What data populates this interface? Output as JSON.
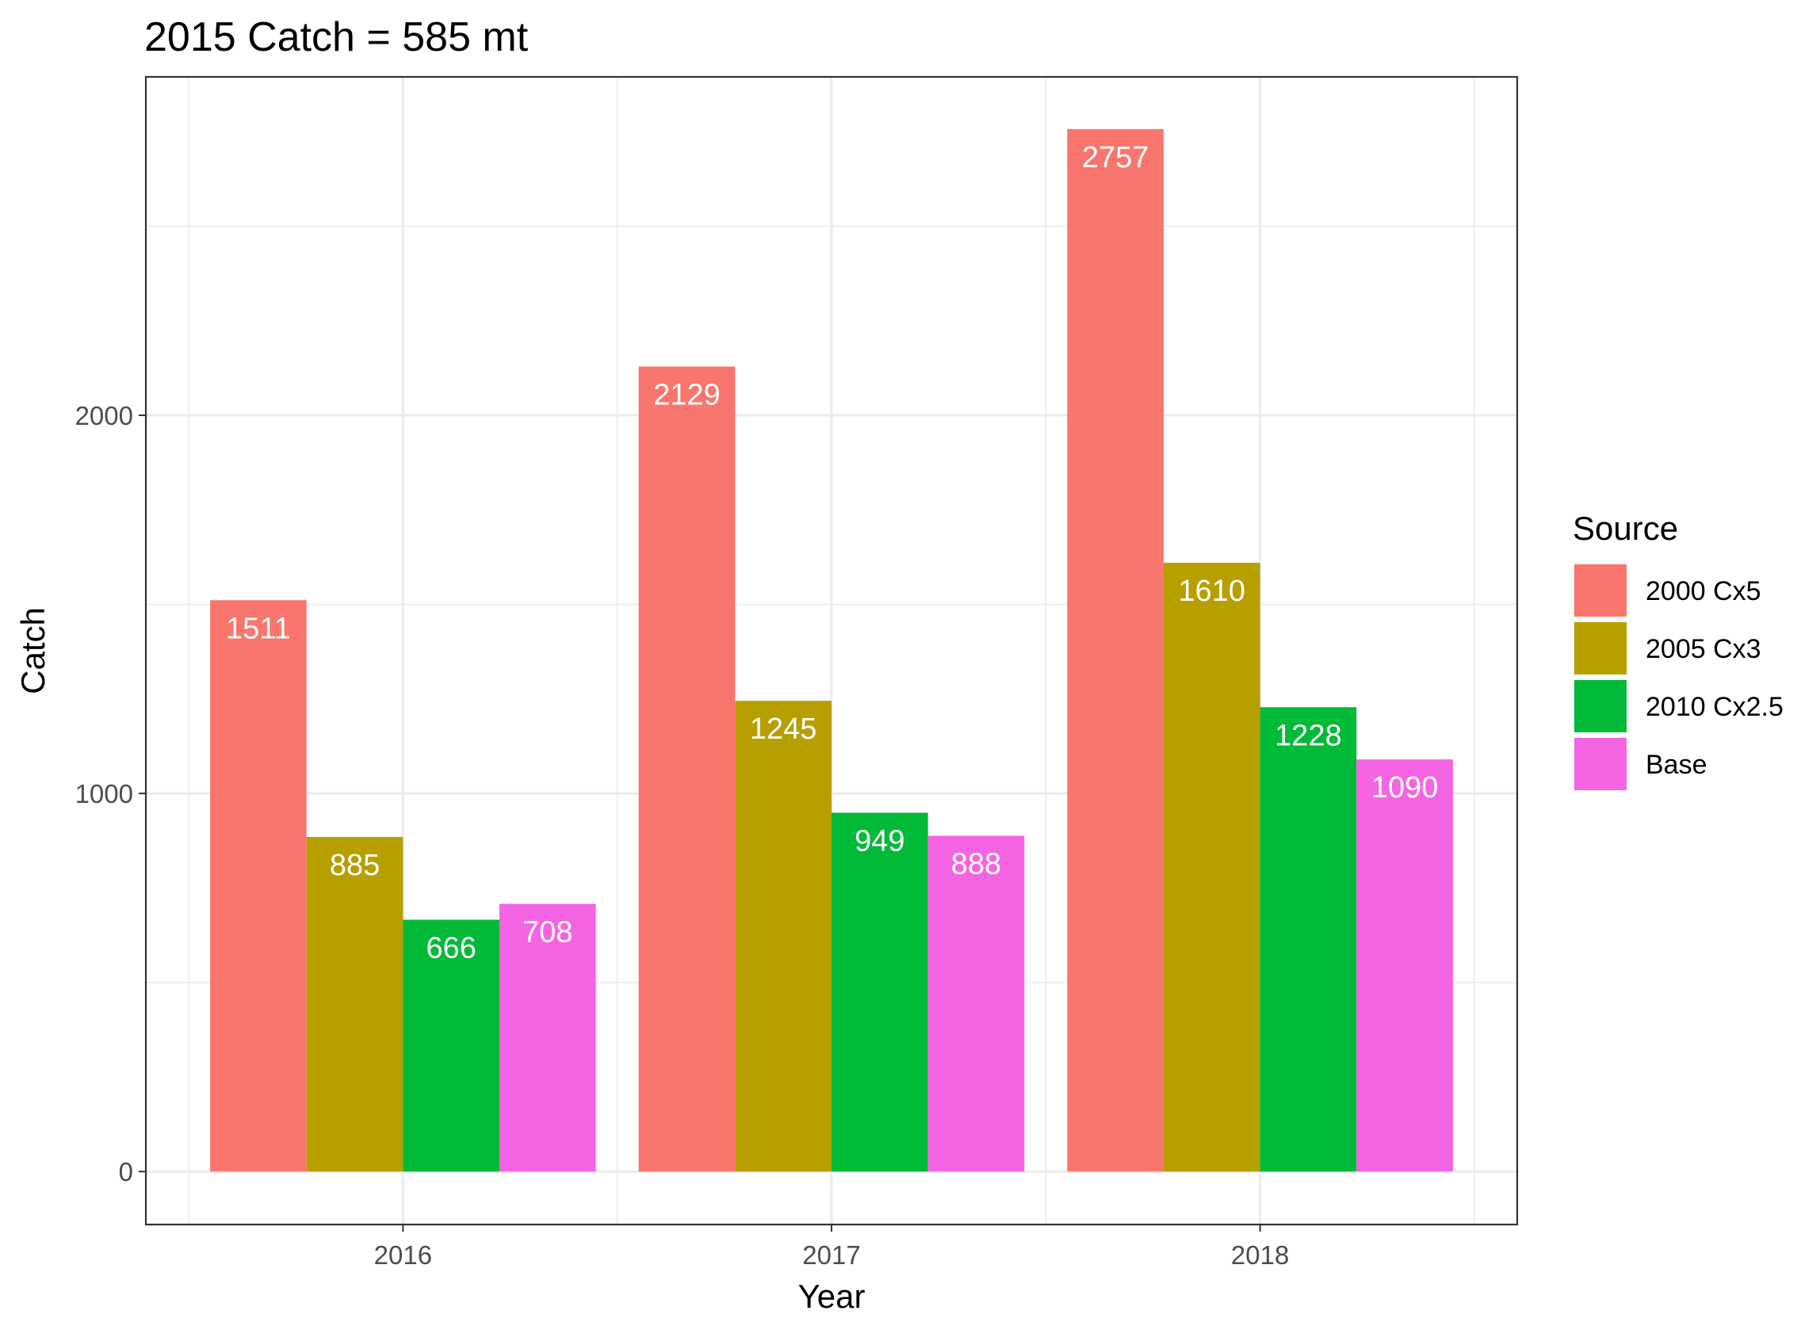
{
  "chart_data": {
    "type": "bar",
    "title": "2015  Catch =  585  mt",
    "xlabel": "Year",
    "ylabel": "Catch",
    "categories": [
      "2016",
      "2017",
      "2018"
    ],
    "y_ticks": [
      0,
      1000,
      2000
    ],
    "y_tick_labels": [
      "0",
      "1000",
      "2000"
    ],
    "ylim": [
      -140,
      2895
    ],
    "grid": true,
    "series": [
      {
        "name": "2000 Cx5",
        "color": "#F8766D",
        "values": [
          1511,
          2129,
          2757
        ],
        "labels": [
          "1511",
          "2129",
          "2757"
        ]
      },
      {
        "name": "2005 Cx3",
        "color": "#B79F00",
        "values": [
          885,
          1245,
          1610
        ],
        "labels": [
          "885",
          "1245",
          "1610"
        ]
      },
      {
        "name": "2010 Cx2.5",
        "color": "#00BA38",
        "values": [
          666,
          949,
          1228
        ],
        "labels": [
          "666",
          "949",
          "1228"
        ]
      },
      {
        "name": "Base",
        "color": "#F564E3",
        "values": [
          708,
          888,
          1090
        ],
        "labels": [
          "708",
          "888",
          "1090"
        ]
      }
    ],
    "legend": {
      "title": "Source",
      "position": "right"
    }
  }
}
